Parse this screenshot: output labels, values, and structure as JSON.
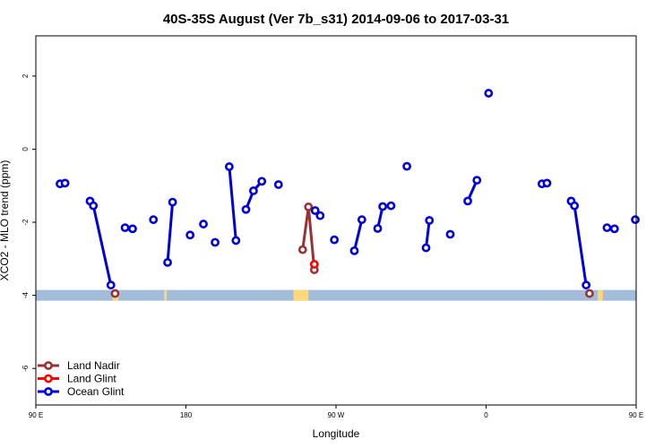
{
  "chart_data": {
    "type": "line",
    "title": "40S-35S August (Ver 7b_s31)   2014-09-06 to 2017-03-31",
    "xlabel": "Longitude",
    "ylabel": "XCO2 - MLO trend (ppm)",
    "xlim": [
      90,
      450
    ],
    "ylim": [
      -7,
      3.1
    ],
    "x_ticks": [
      {
        "value": 90,
        "label": "90 E"
      },
      {
        "value": 180,
        "label": "180"
      },
      {
        "value": 270,
        "label": "90 W"
      },
      {
        "value": 360,
        "label": "0"
      },
      {
        "value": 450,
        "label": "90 E"
      },
      {
        "value": 540,
        "label": "180"
      }
    ],
    "y_ticks": [
      {
        "value": 2,
        "label": "2"
      },
      {
        "value": 0,
        "label": "0"
      },
      {
        "value": -2,
        "label": "-2"
      },
      {
        "value": -4,
        "label": "-4"
      },
      {
        "value": -6,
        "label": "-6"
      }
    ],
    "legend_position": "bottom-left",
    "land_band_y": -4,
    "colors": {
      "land_nadir": "#993333",
      "land_glint": "#ff0000",
      "ocean_glint": "#0000dd",
      "ocean_band": "#a3bcd9",
      "land_band": "#ffd87a"
    },
    "land_band_segments": [
      [
        136,
        139.5
      ],
      [
        167,
        168.5
      ],
      [
        244.5,
        253.5
      ],
      [
        427,
        430
      ],
      [
        450,
        451.5
      ],
      [
        536,
        540
      ]
    ],
    "series": [
      {
        "name": "Land Nadir",
        "color": "#993333",
        "segments": [
          [
            [
              137.5,
              -3.95
            ]
          ],
          [
            [
              250,
              -2.75
            ],
            [
              253.5,
              -1.58
            ],
            [
              257,
              -3.3
            ]
          ],
          [
            [
              422,
              -3.95
            ]
          ]
        ]
      },
      {
        "name": "Land Glint",
        "color": "#ff0000",
        "segments": [
          [
            [
              257,
              -3.15
            ]
          ]
        ]
      },
      {
        "name": "Ocean Glint",
        "color": "#0000dd",
        "segments": [
          [
            [
              104.5,
              -0.95
            ]
          ],
          [
            [
              107.5,
              -0.93
            ]
          ],
          [
            [
              122.5,
              -1.42
            ],
            [
              124.5,
              -1.55
            ],
            [
              135,
              -3.72
            ]
          ],
          [
            [
              143.5,
              -2.15
            ]
          ],
          [
            [
              148,
              -2.18
            ]
          ],
          [
            [
              160.5,
              -1.93
            ]
          ],
          [
            [
              169,
              -3.1
            ],
            [
              172,
              -1.45
            ]
          ],
          [
            [
              182.5,
              -2.35
            ]
          ],
          [
            [
              190.5,
              -2.05
            ]
          ],
          [
            [
              197.5,
              -2.55
            ]
          ],
          [
            [
              206,
              -0.48
            ],
            [
              210,
              -2.5
            ]
          ],
          [
            [
              216,
              -1.65
            ],
            [
              220.5,
              -1.14
            ],
            [
              225.5,
              -0.88
            ]
          ],
          [
            [
              235.5,
              -0.97
            ]
          ],
          [
            [
              257.5,
              -1.68
            ],
            [
              260.5,
              -1.82
            ]
          ],
          [
            [
              269,
              -2.48
            ]
          ],
          [
            [
              281,
              -2.78
            ],
            [
              285.5,
              -1.93
            ]
          ],
          [
            [
              295,
              -2.17
            ],
            [
              298,
              -1.57
            ],
            [
              303,
              -1.55
            ]
          ],
          [
            [
              312.5,
              -0.47
            ]
          ],
          [
            [
              324,
              -2.7
            ],
            [
              326,
              -1.95
            ]
          ],
          [
            [
              338.5,
              -2.33
            ]
          ],
          [
            [
              349,
              -1.42
            ],
            [
              354.5,
              -0.85
            ]
          ],
          [
            [
              361.5,
              1.53
            ]
          ],
          [
            [
              393.5,
              -0.95
            ]
          ],
          [
            [
              396.5,
              -0.93
            ]
          ],
          [
            [
              411,
              -1.42
            ],
            [
              413,
              -1.55
            ],
            [
              420,
              -3.72
            ]
          ],
          [
            [
              432.5,
              -2.15
            ]
          ],
          [
            [
              437,
              -2.18
            ]
          ],
          [
            [
              449.5,
              -1.93
            ]
          ]
        ]
      }
    ]
  }
}
